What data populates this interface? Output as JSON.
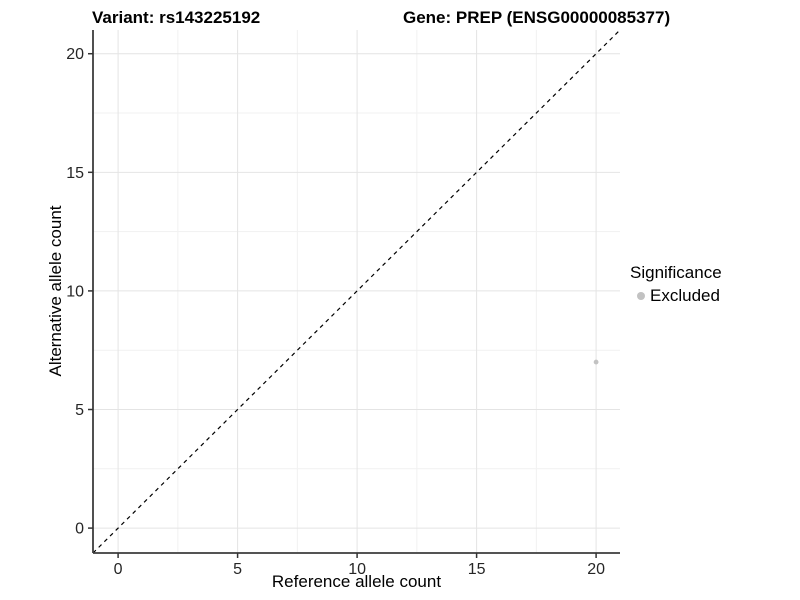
{
  "header": {
    "variant_title": "Variant: rs143225192",
    "gene_title": "Gene: PREP (ENSG00000085377)"
  },
  "legend": {
    "title": "Significance",
    "items": [
      {
        "label": "Excluded",
        "color": "#c2c2c2"
      }
    ]
  },
  "chart_data": {
    "type": "scatter",
    "title": "Variant: rs143225192 / Gene: PREP (ENSG00000085377)",
    "xlabel": "Reference allele count",
    "ylabel": "Alternative allele count",
    "xlim": [
      -1.05,
      21
    ],
    "ylim": [
      -1.05,
      21
    ],
    "x_ticks": [
      0,
      5,
      10,
      15,
      20
    ],
    "y_ticks": [
      0,
      5,
      10,
      15,
      20
    ],
    "x_minor_ticks": [
      2.5,
      7.5,
      12.5,
      17.5
    ],
    "y_minor_ticks": [
      2.5,
      7.5,
      12.5,
      17.5
    ],
    "grid": "major+minor",
    "grid_major_color": "#e4e4e4",
    "grid_minor_color": "#f1f1f1",
    "axis_line_color": "#3c3c3c",
    "tick_color": "#333333",
    "tick_label_color": "#262626",
    "reference_line": {
      "kind": "identity y=x",
      "style": "dashed",
      "color": "#000000"
    },
    "series": [
      {
        "name": "Excluded",
        "color": "#c2c2c2",
        "points": [
          {
            "x": 20,
            "y": 7
          }
        ]
      }
    ],
    "legend_position": "right"
  }
}
